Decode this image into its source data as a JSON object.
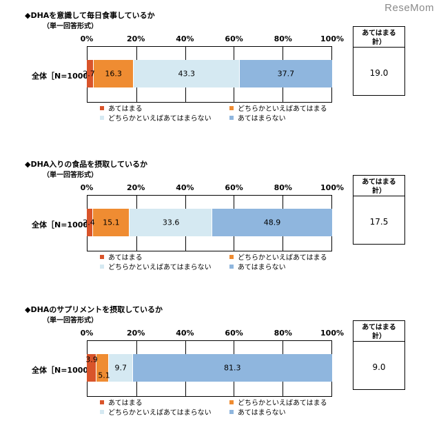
{
  "watermark": "ReseMom",
  "legend_labels": [
    "あてはまる",
    "どちらかといえばあてはまる",
    "どちらかといえばあてはまらない",
    "あてはまらない"
  ],
  "summary_header": "あてはまる\n計）",
  "row_label": "全体［N=1000］",
  "colors": [
    "#d9542a",
    "#ef8c32",
    "#d5e9f2",
    "#8fb6de"
  ],
  "chart_data": [
    {
      "type": "bar",
      "orientation": "horizontal-stacked",
      "title": "◆DHAを意識して毎日食事しているか",
      "subtitle": "単一回答形式",
      "xlim": [
        0,
        100
      ],
      "ticks": [
        "0%",
        "20%",
        "40%",
        "60%",
        "80%",
        "100%"
      ],
      "categories": [
        "全体［N=1000］"
      ],
      "series": [
        {
          "name": "あてはまる",
          "values": [
            2.7
          ]
        },
        {
          "name": "どちらかといえばあてはまる",
          "values": [
            16.3
          ]
        },
        {
          "name": "どちらかといえばあてはまらない",
          "values": [
            43.3
          ]
        },
        {
          "name": "あてはまらない",
          "values": [
            37.7
          ]
        }
      ],
      "summary": "19.0"
    },
    {
      "type": "bar",
      "orientation": "horizontal-stacked",
      "title": "◆DHA入りの食品を摂取しているか",
      "subtitle": "単一回答形式",
      "xlim": [
        0,
        100
      ],
      "ticks": [
        "0%",
        "20%",
        "40%",
        "60%",
        "80%",
        "100%"
      ],
      "categories": [
        "全体［N=1000］"
      ],
      "series": [
        {
          "name": "あてはまる",
          "values": [
            2.4
          ]
        },
        {
          "name": "どちらかといえばあてはまる",
          "values": [
            15.1
          ]
        },
        {
          "name": "どちらかといえばあてはまらない",
          "values": [
            33.6
          ]
        },
        {
          "name": "あてはまらない",
          "values": [
            48.9
          ]
        }
      ],
      "summary": "17.5"
    },
    {
      "type": "bar",
      "orientation": "horizontal-stacked",
      "title": "◆DHAのサプリメントを摂取しているか",
      "subtitle": "単一回答形式",
      "xlim": [
        0,
        100
      ],
      "ticks": [
        "0%",
        "20%",
        "40%",
        "60%",
        "80%",
        "100%"
      ],
      "categories": [
        "全体［N=1000］"
      ],
      "series": [
        {
          "name": "あてはまる",
          "values": [
            3.9
          ]
        },
        {
          "name": "どちらかといえばあてはまる",
          "values": [
            5.1
          ]
        },
        {
          "name": "どちらかといえばあてはまらない",
          "values": [
            9.7
          ]
        },
        {
          "name": "あてはまらない",
          "values": [
            81.3
          ]
        }
      ],
      "summary": "9.0"
    }
  ]
}
